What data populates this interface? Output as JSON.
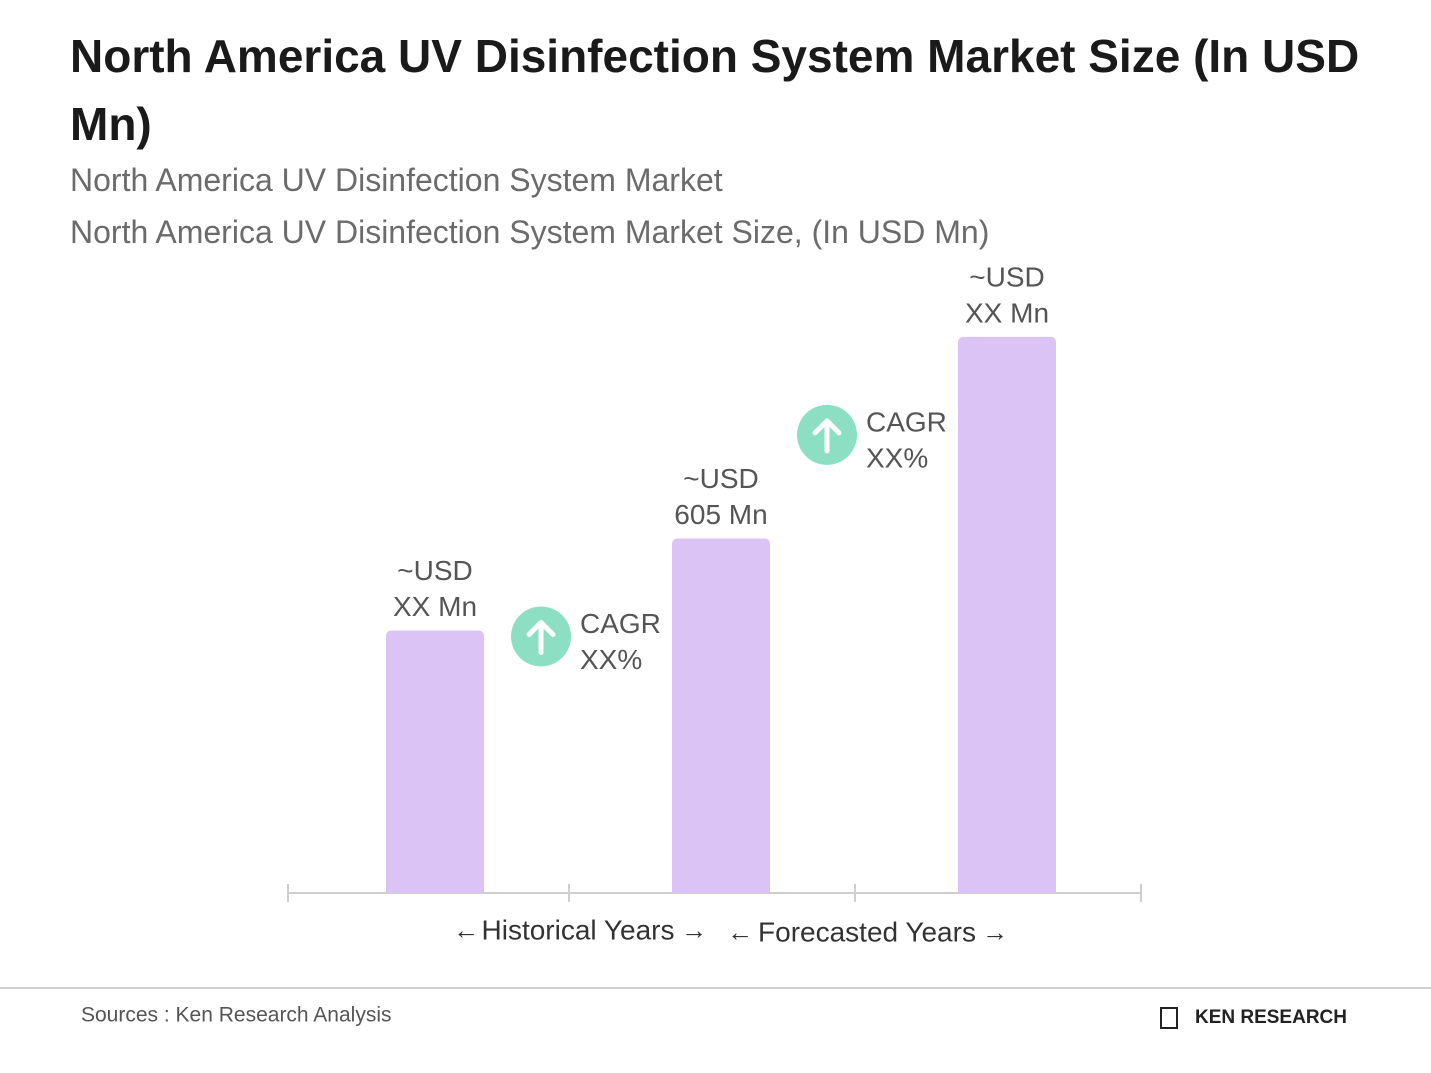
{
  "chart_data": {
    "type": "bar",
    "title": "North America UV Disinfection System Market Size (In USD Mn)",
    "subtitles": [
      "North America UV Disinfection System Market",
      "North America UV Disinfection System Market Size, (In USD Mn)"
    ],
    "categories": [
      null,
      null,
      null
    ],
    "values": [
      448,
      605,
      949
    ],
    "value_labels": [
      [
        "~USD",
        "XX Mn"
      ],
      [
        "~USD",
        "605 Mn"
      ],
      [
        "~USD",
        "XX Mn"
      ]
    ],
    "color": "#dcc3f5",
    "ylim": [
      0,
      1000
    ],
    "annotations": [
      [
        "CAGR",
        "XX%"
      ],
      [
        "CAGR",
        "XX%"
      ]
    ],
    "annotation_color": "#8ddfc4",
    "periods": [
      "Historical Years",
      "Forecasted Years"
    ],
    "source": "Sources : Ken Research Analysis",
    "logo": "KEN RESEARCH"
  }
}
